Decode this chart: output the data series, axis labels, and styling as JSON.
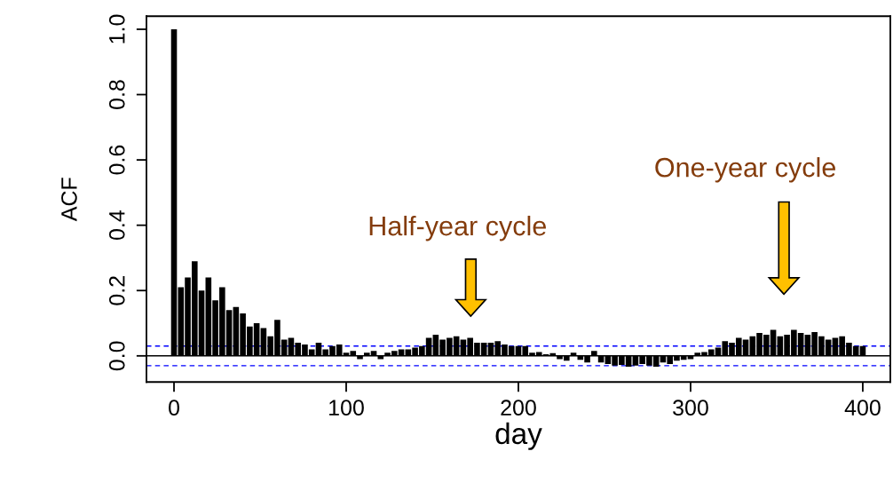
{
  "chart_data": {
    "type": "bar",
    "xlabel": "day",
    "ylabel": "ACF",
    "x": [
      0,
      4,
      8,
      12,
      16,
      20,
      24,
      28,
      32,
      36,
      40,
      44,
      48,
      52,
      56,
      60,
      64,
      68,
      72,
      76,
      80,
      84,
      88,
      92,
      96,
      100,
      104,
      108,
      112,
      116,
      120,
      124,
      128,
      132,
      136,
      140,
      144,
      148,
      152,
      156,
      160,
      164,
      168,
      172,
      176,
      180,
      184,
      188,
      192,
      196,
      200,
      204,
      208,
      212,
      216,
      220,
      224,
      228,
      232,
      236,
      240,
      244,
      248,
      252,
      256,
      260,
      264,
      268,
      272,
      276,
      280,
      284,
      288,
      292,
      296,
      300,
      304,
      308,
      312,
      316,
      320,
      324,
      328,
      332,
      336,
      340,
      344,
      348,
      352,
      356,
      360,
      364,
      368,
      372,
      376,
      380,
      384,
      388,
      392,
      396,
      400
    ],
    "values": [
      1.0,
      0.21,
      0.24,
      0.29,
      0.2,
      0.24,
      0.17,
      0.21,
      0.14,
      0.15,
      0.13,
      0.09,
      0.1,
      0.085,
      0.06,
      0.11,
      0.05,
      0.055,
      0.04,
      0.035,
      0.02,
      0.04,
      0.02,
      0.03,
      0.035,
      0.01,
      0.015,
      -0.01,
      0.01,
      0.015,
      -0.01,
      0.01,
      0.015,
      0.02,
      0.02,
      0.025,
      0.03,
      0.055,
      0.065,
      0.05,
      0.055,
      0.06,
      0.05,
      0.055,
      0.04,
      0.04,
      0.04,
      0.045,
      0.035,
      0.03,
      0.03,
      0.03,
      0.01,
      0.012,
      0.005,
      0.008,
      -0.01,
      -0.015,
      0.01,
      -0.012,
      -0.02,
      0.015,
      -0.02,
      -0.025,
      -0.03,
      -0.028,
      -0.033,
      -0.03,
      -0.025,
      -0.03,
      -0.033,
      -0.02,
      -0.025,
      -0.015,
      -0.012,
      -0.01,
      0.01,
      0.012,
      0.02,
      0.025,
      0.045,
      0.04,
      0.055,
      0.05,
      0.06,
      0.07,
      0.065,
      0.08,
      0.06,
      0.065,
      0.08,
      0.07,
      0.065,
      0.073,
      0.06,
      0.05,
      0.055,
      0.06,
      0.04,
      0.03,
      0.03
    ],
    "color": "#000000",
    "xlim": [
      -16,
      416
    ],
    "xticks": [
      0,
      100,
      200,
      300,
      400
    ],
    "ylim": [
      -0.08,
      1.04
    ],
    "yticks": [
      {
        "value": 0,
        "label": "0.0"
      },
      {
        "value": 0.2,
        "label": "0.2"
      },
      {
        "value": 0.4,
        "label": "0.4"
      },
      {
        "value": 0.6,
        "label": "0.6"
      },
      {
        "value": 0.8,
        "label": "0.8"
      },
      {
        "value": 1,
        "label": "1.0"
      }
    ],
    "ref_lines": [
      {
        "axis": "y",
        "value": 0,
        "color": "#000000",
        "line_style": "solid"
      },
      {
        "axis": "y",
        "value": 0.03,
        "color": "#0000ff",
        "line_style": "dashed"
      },
      {
        "axis": "y",
        "value": -0.03,
        "color": "#0000ff",
        "line_style": "dashed"
      }
    ],
    "annotations": [
      "Half-year cycle",
      "One-year cycle"
    ],
    "grid": false,
    "legend": false
  }
}
